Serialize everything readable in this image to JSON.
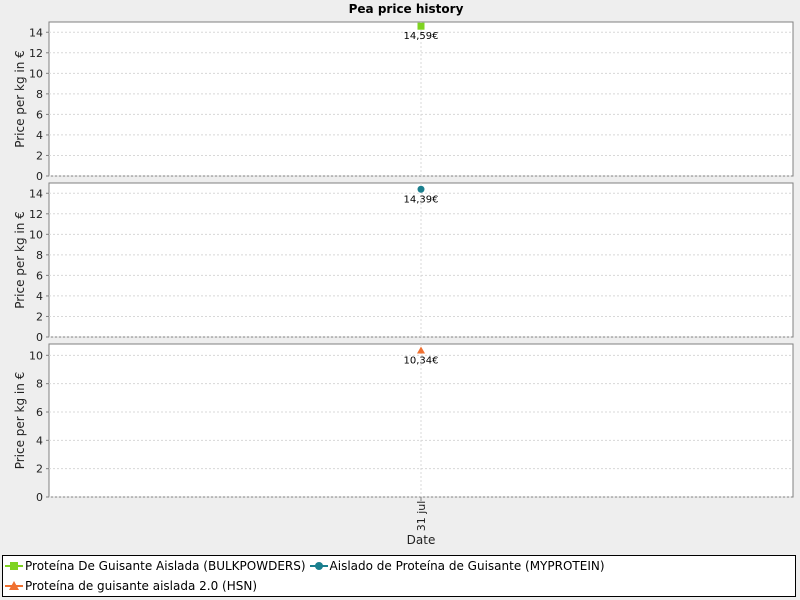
{
  "chart_data": {
    "type": "scatter",
    "title": "Pea price history",
    "xlabel": "Date",
    "x_categories": [
      "31 jul"
    ],
    "panels": [
      {
        "ylabel": "Price per kg in €",
        "ylim": [
          0,
          15
        ],
        "yticks": [
          0,
          2,
          4,
          6,
          8,
          10,
          12,
          14
        ],
        "series": [
          {
            "name": "Proteína De Guisante Aislada (BULKPOWDERS)",
            "marker": "square",
            "color": "#7ed321",
            "points": [
              {
                "x": "31 jul",
                "y": 14.59,
                "label": "14,59€"
              }
            ]
          }
        ]
      },
      {
        "ylabel": "Price per kg in €",
        "ylim": [
          0,
          15
        ],
        "yticks": [
          0,
          2,
          4,
          6,
          8,
          10,
          12,
          14
        ],
        "series": [
          {
            "name": "Aislado de Proteína de Guisante (MYPROTEIN)",
            "marker": "circle",
            "color": "#1a7f8e",
            "points": [
              {
                "x": "31 jul",
                "y": 14.39,
                "label": "14,39€"
              }
            ]
          }
        ]
      },
      {
        "ylabel": "Price per kg in €",
        "ylim": [
          0,
          10.8
        ],
        "yticks": [
          0,
          2,
          4,
          6,
          8,
          10
        ],
        "series": [
          {
            "name": "Proteína de guisante aislada 2.0 (HSN)",
            "marker": "triangle",
            "color": "#f07030",
            "points": [
              {
                "x": "31 jul",
                "y": 10.34,
                "label": "10,34€"
              }
            ]
          }
        ]
      }
    ],
    "grid": true,
    "legend_position": "bottom"
  }
}
